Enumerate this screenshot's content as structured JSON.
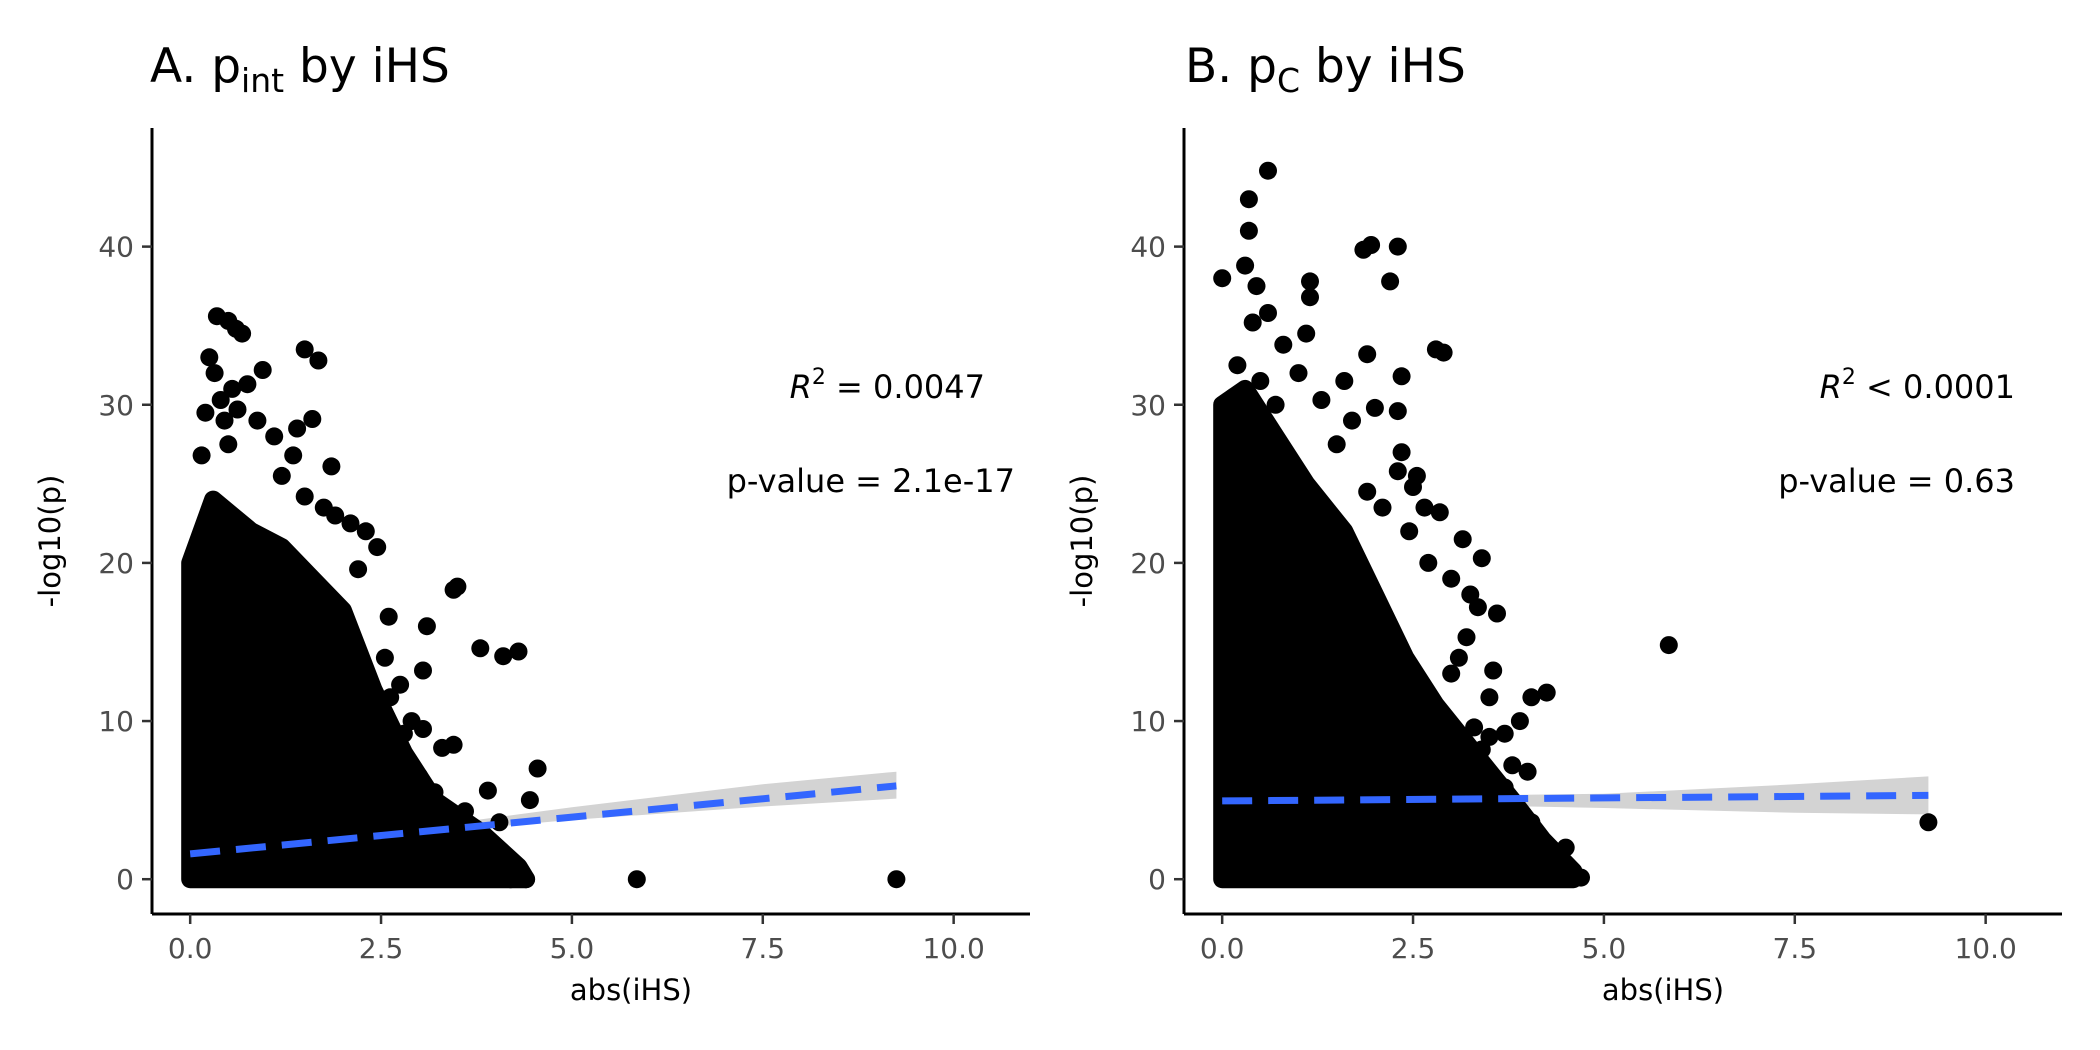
{
  "chart_data": [
    {
      "type": "scatter",
      "title": {
        "prefix": "A.  p",
        "subscript": "int",
        "suffix": " by iHS"
      },
      "xlabel": "abs(iHS)",
      "ylabel": "-log10(p)",
      "xlim": [
        -0.5,
        11.0
      ],
      "ylim": [
        -2.2,
        47.5
      ],
      "x_ticks": [
        "0.0",
        "2.5",
        "5.0",
        "7.5",
        "10.0"
      ],
      "x_tick_values": [
        0,
        2.5,
        5.0,
        7.5,
        10.0
      ],
      "y_ticks": [
        "0",
        "10",
        "20",
        "30",
        "40"
      ],
      "y_tick_values": [
        0,
        10,
        20,
        30,
        40
      ],
      "r2_label": {
        "prefix": "R",
        "sup": "2",
        "suffix": " = 0.0047"
      },
      "pvalue_label": "p-value = 2.1e-17",
      "dense_envelope": [
        [
          0,
          0
        ],
        [
          0,
          20
        ],
        [
          0.3,
          24
        ],
        [
          0.8,
          22
        ],
        [
          1.2,
          21
        ],
        [
          1.6,
          19
        ],
        [
          2.0,
          17
        ],
        [
          2.4,
          12
        ],
        [
          2.8,
          8
        ],
        [
          3.2,
          5
        ],
        [
          3.8,
          3
        ],
        [
          4.3,
          0.8
        ],
        [
          4.4,
          0
        ]
      ],
      "points": [
        [
          0.35,
          35.6
        ],
        [
          0.5,
          35.3
        ],
        [
          0.6,
          34.8
        ],
        [
          0.68,
          34.5
        ],
        [
          1.5,
          33.5
        ],
        [
          1.68,
          32.8
        ],
        [
          0.25,
          33.0
        ],
        [
          0.32,
          32.0
        ],
        [
          0.95,
          32.2
        ],
        [
          0.4,
          30.3
        ],
        [
          0.55,
          31.0
        ],
        [
          0.75,
          31.3
        ],
        [
          0.2,
          29.5
        ],
        [
          0.45,
          29.0
        ],
        [
          0.62,
          29.7
        ],
        [
          0.88,
          29.0
        ],
        [
          1.1,
          28.0
        ],
        [
          1.4,
          28.5
        ],
        [
          1.6,
          29.1
        ],
        [
          1.35,
          26.8
        ],
        [
          1.85,
          26.1
        ],
        [
          0.15,
          26.8
        ],
        [
          0.5,
          27.5
        ],
        [
          1.2,
          25.5
        ],
        [
          1.5,
          24.2
        ],
        [
          1.75,
          23.5
        ],
        [
          1.9,
          23.0
        ],
        [
          2.1,
          22.5
        ],
        [
          2.3,
          22.0
        ],
        [
          2.2,
          19.6
        ],
        [
          2.45,
          21.0
        ],
        [
          2.6,
          16.6
        ],
        [
          3.1,
          16.0
        ],
        [
          3.5,
          18.5
        ],
        [
          3.45,
          18.3
        ],
        [
          3.8,
          14.6
        ],
        [
          4.1,
          14.1
        ],
        [
          4.3,
          14.4
        ],
        [
          2.55,
          14.0
        ],
        [
          2.75,
          12.3
        ],
        [
          3.05,
          13.2
        ],
        [
          2.9,
          10.0
        ],
        [
          3.05,
          9.5
        ],
        [
          2.62,
          11.5
        ],
        [
          2.8,
          9.2
        ],
        [
          3.3,
          8.3
        ],
        [
          3.45,
          8.5
        ],
        [
          3.9,
          5.6
        ],
        [
          4.55,
          7.0
        ],
        [
          4.45,
          5.0
        ],
        [
          2.4,
          10.5
        ],
        [
          2.7,
          8.0
        ],
        [
          3.0,
          6.5
        ],
        [
          3.2,
          5.5
        ],
        [
          3.6,
          4.3
        ],
        [
          3.35,
          3.8
        ],
        [
          4.05,
          3.6
        ],
        [
          3.7,
          3.0
        ],
        [
          4.1,
          0.2
        ],
        [
          3.5,
          0.1
        ],
        [
          3.75,
          0.05
        ],
        [
          3.9,
          0.1
        ],
        [
          4.2,
          0.0
        ],
        [
          4.3,
          0.05
        ],
        [
          4.4,
          0.0
        ],
        [
          5.85,
          0.0
        ],
        [
          9.25,
          0.0
        ]
      ],
      "fit": {
        "x0": 0,
        "y0": 1.6,
        "x1": 9.25,
        "y1": 5.9,
        "band": [
          [
            0,
            1.35,
            1.85
          ],
          [
            2.5,
            2.7,
            2.95
          ],
          [
            5,
            3.75,
            4.55
          ],
          [
            7.5,
            4.6,
            6.0
          ],
          [
            9.25,
            5.1,
            6.8
          ]
        ]
      }
    },
    {
      "type": "scatter",
      "title": {
        "prefix": "B.  p",
        "subscript": "C",
        "suffix": " by iHS"
      },
      "xlabel": "abs(iHS)",
      "ylabel": "-log10(p)",
      "xlim": [
        -0.5,
        11.0
      ],
      "ylim": [
        -2.2,
        47.5
      ],
      "x_ticks": [
        "0.0",
        "2.5",
        "5.0",
        "7.5",
        "10.0"
      ],
      "x_tick_values": [
        0,
        2.5,
        5.0,
        7.5,
        10.0
      ],
      "y_ticks": [
        "0",
        "10",
        "20",
        "30",
        "40"
      ],
      "y_tick_values": [
        0,
        10,
        20,
        30,
        40
      ],
      "r2_label": {
        "prefix": "R",
        "sup": "2",
        "suffix": " < 0.0001"
      },
      "pvalue_label": "p-value = 0.63",
      "dense_envelope": [
        [
          0,
          0
        ],
        [
          0,
          30
        ],
        [
          0.3,
          31
        ],
        [
          0.7,
          28
        ],
        [
          1.1,
          25
        ],
        [
          1.6,
          22
        ],
        [
          2.0,
          18
        ],
        [
          2.4,
          14
        ],
        [
          2.8,
          11
        ],
        [
          3.3,
          8
        ],
        [
          3.8,
          5
        ],
        [
          4.2,
          2.5
        ],
        [
          4.6,
          0.5
        ],
        [
          4.6,
          0
        ]
      ],
      "points": [
        [
          0.6,
          44.8
        ],
        [
          0.35,
          43.0
        ],
        [
          0.35,
          41.0
        ],
        [
          1.85,
          39.8
        ],
        [
          1.95,
          40.1
        ],
        [
          2.3,
          40.0
        ],
        [
          0.0,
          38.0
        ],
        [
          0.3,
          38.8
        ],
        [
          0.45,
          37.5
        ],
        [
          1.15,
          37.8
        ],
        [
          1.15,
          36.8
        ],
        [
          2.2,
          37.8
        ],
        [
          0.6,
          35.8
        ],
        [
          1.1,
          34.5
        ],
        [
          0.4,
          35.2
        ],
        [
          0.8,
          33.8
        ],
        [
          2.8,
          33.5
        ],
        [
          2.9,
          33.3
        ],
        [
          1.9,
          33.2
        ],
        [
          0.2,
          32.5
        ],
        [
          0.5,
          31.5
        ],
        [
          1.0,
          32.0
        ],
        [
          1.6,
          31.5
        ],
        [
          2.35,
          31.8
        ],
        [
          0.15,
          30.5
        ],
        [
          0.7,
          30.0
        ],
        [
          1.3,
          30.3
        ],
        [
          1.7,
          29.0
        ],
        [
          2.0,
          29.8
        ],
        [
          2.3,
          29.6
        ],
        [
          1.5,
          27.5
        ],
        [
          2.35,
          27.0
        ],
        [
          2.3,
          25.8
        ],
        [
          2.55,
          25.5
        ],
        [
          2.5,
          24.8
        ],
        [
          1.9,
          24.5
        ],
        [
          2.65,
          23.5
        ],
        [
          2.85,
          23.2
        ],
        [
          2.1,
          23.5
        ],
        [
          2.45,
          22.0
        ],
        [
          3.15,
          21.5
        ],
        [
          3.4,
          20.3
        ],
        [
          2.7,
          20.0
        ],
        [
          3.0,
          19.0
        ],
        [
          3.25,
          18.0
        ],
        [
          3.35,
          17.2
        ],
        [
          3.6,
          16.8
        ],
        [
          3.2,
          15.3
        ],
        [
          3.1,
          14.0
        ],
        [
          3.0,
          13.0
        ],
        [
          3.55,
          13.2
        ],
        [
          3.5,
          11.5
        ],
        [
          4.05,
          11.5
        ],
        [
          4.25,
          11.8
        ],
        [
          3.9,
          10.0
        ],
        [
          3.7,
          9.2
        ],
        [
          3.3,
          9.6
        ],
        [
          3.5,
          9.0
        ],
        [
          3.4,
          8.2
        ],
        [
          3.8,
          7.2
        ],
        [
          4.0,
          6.8
        ],
        [
          3.7,
          5.8
        ],
        [
          5.85,
          14.8
        ],
        [
          4.1,
          3.0
        ],
        [
          4.05,
          3.6
        ],
        [
          4.05,
          2.2
        ],
        [
          4.3,
          1.5
        ],
        [
          4.2,
          1.0
        ],
        [
          4.5,
          2.0
        ],
        [
          4.1,
          0.8
        ],
        [
          4.6,
          0.3
        ],
        [
          4.7,
          0.1
        ],
        [
          3.5,
          2.5
        ],
        [
          3.9,
          3.1
        ],
        [
          9.25,
          3.6
        ]
      ],
      "fit": {
        "x0": 0,
        "y0": 4.95,
        "x1": 9.25,
        "y1": 5.3,
        "band": [
          [
            0,
            4.6,
            5.3
          ],
          [
            2.5,
            4.75,
            5.25
          ],
          [
            5,
            4.5,
            5.4
          ],
          [
            7.5,
            4.2,
            6.0
          ],
          [
            9.25,
            4.1,
            6.5
          ]
        ]
      }
    }
  ],
  "colors": {
    "points": "#000000",
    "fit_line": "#3366ff",
    "band": "#d3d3d3",
    "axis": "#000000",
    "tick_label": "#4d4d4d"
  }
}
